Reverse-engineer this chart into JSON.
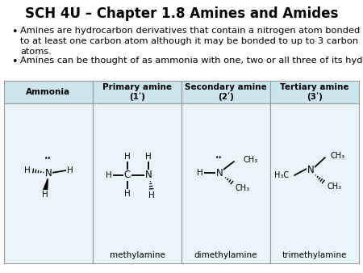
{
  "title": "SCH 4U – Chapter 1.8 Amines and Amides",
  "bullet1": "Amines are hydrocarbon derivatives that contain a nitrogen atom bonded to at least one carbon atom although it may be bonded to up to 3 carbon atoms.",
  "bullet2": "Amines can be thought of as ammonia with one, two or all three of its hydrogens substituted by alkyl groups.",
  "table_headers": [
    "Ammonia",
    "Primary amine\n(1ʹ)",
    "Secondary amine\n(2ʹ)",
    "Tertiary amine\n(3ʹ)"
  ],
  "table_labels": [
    "",
    "methylamine",
    "dimethylamine",
    "trimethylamine"
  ],
  "bg_color": "#ffffff",
  "header_bg": "#cce4ee",
  "cell_bg": "#e8f4f8",
  "table_border": "#999999",
  "title_fontsize": 12,
  "body_fontsize": 8.2,
  "table_header_fontsize": 7.5,
  "label_fontsize": 7.5
}
